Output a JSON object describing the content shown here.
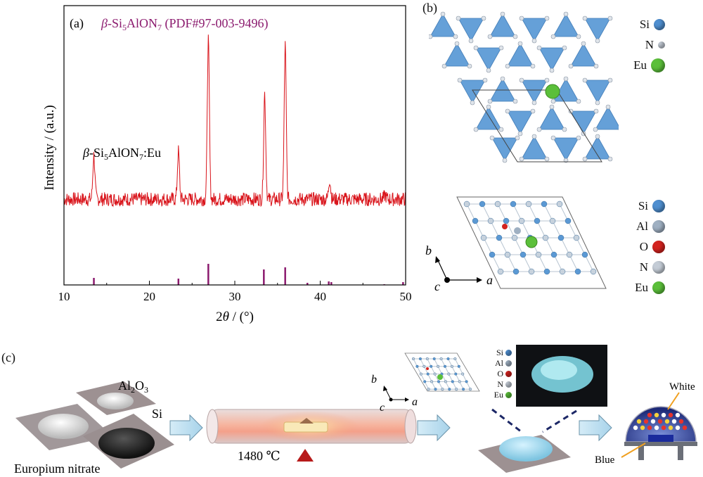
{
  "panel_a": {
    "label": "(a)",
    "ref_title_html_parts": {
      "prefix": "β-Si",
      "sub1": "5",
      "mid": "AlON",
      "sub2": "7",
      "suffix": " (PDF#97-003-9496)"
    },
    "sample_parts": {
      "prefix": "β-Si",
      "sub1": "5",
      "mid": "AlON",
      "sub2": "7",
      "suffix": ":Eu"
    },
    "ylabel": "Intensity / (a.u.)",
    "xlabel": "2θ / (°)",
    "colors": {
      "measured": "#d9141b",
      "reference": "#8b1a6e"
    }
  },
  "chart_data": {
    "type": "line",
    "title": "",
    "xlabel": "2θ / (°)",
    "ylabel": "Intensity / (a.u.)",
    "xlim": [
      10,
      50
    ],
    "xticks": [
      10,
      20,
      30,
      40,
      50
    ],
    "series": [
      {
        "name": "β-Si5AlON7:Eu",
        "peaks": [
          {
            "x": 13.5,
            "y": 0.42
          },
          {
            "x": 23.4,
            "y": 0.44
          },
          {
            "x": 26.9,
            "y": 1.0
          },
          {
            "x": 33.5,
            "y": 0.73
          },
          {
            "x": 35.9,
            "y": 0.97
          },
          {
            "x": 38.8,
            "y": 0.2
          },
          {
            "x": 41.1,
            "y": 0.3
          },
          {
            "x": 47.6,
            "y": 0.22
          }
        ],
        "baseline": 0.2
      },
      {
        "name": "β-Si5AlON7 (PDF#97-003-9496)",
        "sticks": [
          {
            "x": 13.5,
            "y": 0.1
          },
          {
            "x": 23.4,
            "y": 0.09
          },
          {
            "x": 26.9,
            "y": 0.3
          },
          {
            "x": 33.4,
            "y": 0.22
          },
          {
            "x": 35.9,
            "y": 0.25
          },
          {
            "x": 38.5,
            "y": 0.03
          },
          {
            "x": 41.0,
            "y": 0.05
          },
          {
            "x": 41.3,
            "y": 0.04
          },
          {
            "x": 47.5,
            "y": 0.01
          },
          {
            "x": 49.7,
            "y": 0.04
          }
        ]
      }
    ]
  },
  "panel_b": {
    "label": "(b)",
    "legend_top": [
      {
        "symbol": "Si",
        "color": "#4f8fd0"
      },
      {
        "symbol": "N",
        "color": "#c4ccd6"
      },
      {
        "symbol": "Eu",
        "color": "#5bbf3a"
      }
    ],
    "legend_bottom": [
      {
        "symbol": "Si",
        "color": "#4f8fd0"
      },
      {
        "symbol": "Al",
        "color": "#9fb0c2"
      },
      {
        "symbol": "O",
        "color": "#d3231f"
      },
      {
        "symbol": "N",
        "color": "#c4ccd6"
      },
      {
        "symbol": "Eu",
        "color": "#5bbf3a"
      }
    ],
    "axes": {
      "b": "b",
      "c": "c",
      "a": "a"
    }
  },
  "panel_c": {
    "label": "(c)",
    "al2o3": {
      "prefix": "Al",
      "sub1": "2",
      "mid": "O",
      "sub2": "3"
    },
    "si": "Si",
    "europium": "Europium nitrate",
    "temperature": "1480 ℃",
    "legend": [
      "Si",
      "Al",
      "O",
      "N",
      "Eu"
    ],
    "axes": {
      "b": "b",
      "c": "c",
      "a": "a"
    },
    "white": "White",
    "blue": "Blue"
  }
}
